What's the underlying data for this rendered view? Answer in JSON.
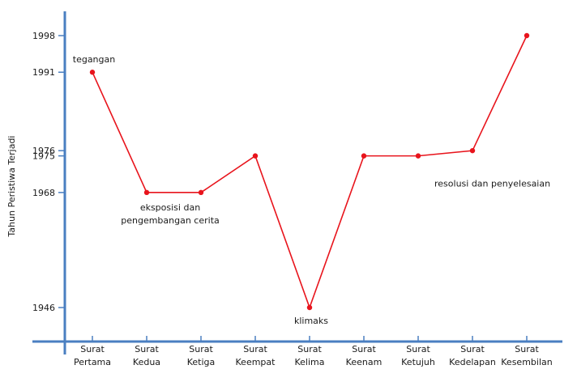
{
  "chart_data": {
    "type": "line",
    "title": "",
    "xlabel": "",
    "ylabel": "Tahun Peristiwa Terjadi",
    "categories": [
      [
        "Surat",
        "Pertama"
      ],
      [
        "Surat",
        "Kedua"
      ],
      [
        "Surat",
        "Ketiga"
      ],
      [
        "Surat",
        "Keempat"
      ],
      [
        "Surat",
        "Kelima"
      ],
      [
        "Surat",
        "Keenam"
      ],
      [
        "Surat",
        "Ketujuh"
      ],
      [
        "Surat",
        "Kedelapan"
      ],
      [
        "Surat",
        "Kesembilan"
      ]
    ],
    "series": [
      {
        "values": [
          1991,
          1968,
          1968,
          1975,
          1946,
          1975,
          1975,
          1976,
          1998
        ]
      }
    ],
    "yticks": [
      "1946",
      "1968",
      "1975",
      "1976",
      "1991",
      "1998"
    ],
    "ylim": [
      1941,
      2002
    ],
    "grid": false,
    "line_color": "#e8141c",
    "axis_color": "#4a7fc1",
    "annotations": [
      {
        "lines": [
          "tegangan"
        ],
        "point": 0,
        "placement": "above"
      },
      {
        "lines": [
          "eksposisi dan",
          "pengembangan cerita"
        ],
        "point": 1,
        "placement": "below"
      },
      {
        "lines": [
          "klimaks"
        ],
        "point": 4,
        "placement": "below"
      },
      {
        "lines": [
          "resolusi dan penyelesaian"
        ],
        "point": 6,
        "placement": "below-right"
      }
    ]
  }
}
